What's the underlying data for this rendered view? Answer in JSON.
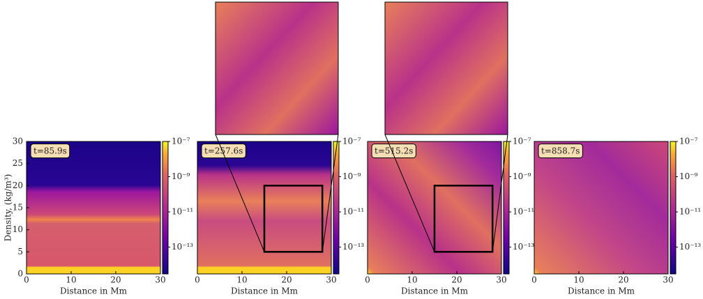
{
  "chart_data": [
    {
      "type": "image",
      "annotation": "t=85.9s",
      "xlabel": "Distance in Mm",
      "ylabel": "Density, (kg/m³)",
      "xlim": [
        0,
        30
      ],
      "xticks": [
        0,
        10,
        20,
        30
      ],
      "ylim": [
        0,
        30
      ],
      "yticks": [
        0,
        5,
        10,
        15,
        20,
        25,
        30
      ],
      "colorbar": {
        "scale": "log",
        "lim": [
          3e-15,
          1e-07
        ],
        "ticks": [
          {
            "value": 1e-07,
            "label": "10⁻⁷"
          },
          {
            "value": 1e-09,
            "label": "10⁻⁹"
          },
          {
            "value": 1e-11,
            "label": "10⁻¹¹"
          },
          {
            "value": 1e-13,
            "label": "10⁻¹³"
          }
        ]
      }
    },
    {
      "type": "image",
      "annotation": "t=257.6s",
      "xlabel": "Distance in Mm",
      "xlim": [
        0,
        30
      ],
      "xticks": [
        0,
        10,
        20,
        30
      ],
      "ylim": [
        0,
        30
      ],
      "colorbar": {
        "scale": "log",
        "lim": [
          3e-15,
          1e-07
        ],
        "ticks": [
          {
            "value": 1e-07,
            "label": "10⁻⁷"
          },
          {
            "value": 1e-09,
            "label": "10⁻⁹"
          },
          {
            "value": 1e-11,
            "label": "10⁻¹¹"
          },
          {
            "value": 1e-13,
            "label": "10⁻¹³"
          }
        ]
      },
      "inset": {
        "xlim": [
          15,
          28
        ],
        "ylim": [
          5,
          20
        ]
      }
    },
    {
      "type": "image",
      "annotation": "t=515.2s",
      "xlabel": "Distance in Mm",
      "xlim": [
        0,
        30
      ],
      "xticks": [
        0,
        10,
        20,
        30
      ],
      "ylim": [
        0,
        30
      ],
      "colorbar": {
        "scale": "log",
        "lim": [
          3e-15,
          1e-07
        ],
        "ticks": [
          {
            "value": 1e-07,
            "label": "10⁻⁷"
          },
          {
            "value": 1e-09,
            "label": "10⁻⁹"
          },
          {
            "value": 1e-11,
            "label": "10⁻¹¹"
          },
          {
            "value": 1e-13,
            "label": "10⁻¹³"
          }
        ]
      },
      "inset": {
        "xlim": [
          15,
          28
        ],
        "ylim": [
          5,
          20
        ]
      }
    },
    {
      "type": "image",
      "annotation": "t=858.7s",
      "xlabel": "Distance in Mm",
      "xlim": [
        0,
        30
      ],
      "xticks": [
        0,
        10,
        20,
        30
      ],
      "ylim": [
        0,
        30
      ],
      "colorbar": {
        "scale": "log",
        "lim": [
          3e-15,
          1e-07
        ],
        "ticks": [
          {
            "value": 1e-07,
            "label": "10⁻⁷"
          },
          {
            "value": 1e-09,
            "label": "10⁻⁹"
          },
          {
            "value": 1e-11,
            "label": "10⁻¹¹"
          },
          {
            "value": 1e-13,
            "label": "10⁻¹³"
          }
        ]
      }
    }
  ]
}
